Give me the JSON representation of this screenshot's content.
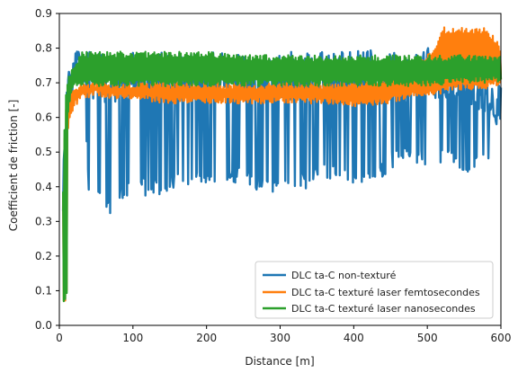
{
  "chart_data": {
    "type": "line",
    "title": "",
    "xlabel": "Distance [m]",
    "ylabel": "Coefficient de friction [-]",
    "xlim": [
      0,
      600
    ],
    "ylim": [
      0.0,
      0.9
    ],
    "xticks": [
      0,
      100,
      200,
      300,
      400,
      500,
      600
    ],
    "yticks": [
      0.0,
      0.1,
      0.2,
      0.3,
      0.4,
      0.5,
      0.6,
      0.7,
      0.8,
      0.9
    ],
    "xtick_labels": [
      "0",
      "100",
      "200",
      "300",
      "400",
      "500",
      "600"
    ],
    "ytick_labels": [
      "0.0",
      "0.1",
      "0.2",
      "0.3",
      "0.4",
      "0.5",
      "0.6",
      "0.7",
      "0.8",
      "0.9"
    ],
    "grid": false,
    "legend_position": "bottom-right",
    "series": [
      {
        "name": "DLC ta-C non-texturé",
        "color": "#1f77b4",
        "x": [
          5,
          8,
          10,
          12,
          15,
          20,
          25,
          30,
          35,
          40,
          55,
          70,
          85,
          100,
          130,
          160,
          200,
          240,
          280,
          320,
          360,
          400,
          420,
          440,
          450,
          480,
          500,
          520,
          540,
          560,
          580,
          600
        ],
        "lower": [
          0.06,
          0.06,
          0.07,
          0.1,
          0.55,
          0.7,
          0.74,
          0.7,
          0.62,
          0.38,
          0.36,
          0.32,
          0.36,
          0.38,
          0.37,
          0.4,
          0.4,
          0.41,
          0.37,
          0.38,
          0.42,
          0.4,
          0.4,
          0.42,
          0.45,
          0.47,
          0.46,
          0.46,
          0.45,
          0.44,
          0.45,
          0.6
        ],
        "upper": [
          0.45,
          0.55,
          0.7,
          0.73,
          0.75,
          0.78,
          0.8,
          0.8,
          0.8,
          0.8,
          0.79,
          0.78,
          0.78,
          0.79,
          0.79,
          0.79,
          0.79,
          0.8,
          0.79,
          0.79,
          0.79,
          0.79,
          0.8,
          0.8,
          0.79,
          0.78,
          0.8,
          0.8,
          0.8,
          0.78,
          0.74,
          0.72
        ]
      },
      {
        "name": "DLC ta-C texturé laser femtosecondes",
        "color": "#ff7f0e",
        "x": [
          5,
          8,
          10,
          12,
          15,
          20,
          30,
          50,
          100,
          150,
          200,
          250,
          300,
          350,
          400,
          450,
          480,
          500,
          510,
          520,
          540,
          560,
          580,
          595,
          600
        ],
        "lower": [
          0.06,
          0.06,
          0.1,
          0.55,
          0.6,
          0.63,
          0.65,
          0.66,
          0.65,
          0.64,
          0.64,
          0.64,
          0.64,
          0.64,
          0.63,
          0.64,
          0.66,
          0.66,
          0.66,
          0.67,
          0.68,
          0.68,
          0.68,
          0.69,
          0.69
        ],
        "upper": [
          0.4,
          0.62,
          0.65,
          0.66,
          0.67,
          0.69,
          0.7,
          0.7,
          0.7,
          0.7,
          0.7,
          0.7,
          0.7,
          0.7,
          0.7,
          0.72,
          0.76,
          0.78,
          0.8,
          0.86,
          0.86,
          0.86,
          0.86,
          0.82,
          0.8
        ]
      },
      {
        "name": "DLC ta-C texturé laser nanosecondes",
        "color": "#2ca02c",
        "x": [
          5,
          8,
          10,
          12,
          15,
          20,
          30,
          50,
          100,
          150,
          200,
          250,
          300,
          350,
          400,
          450,
          500,
          550,
          600
        ],
        "lower": [
          0.06,
          0.06,
          0.08,
          0.6,
          0.65,
          0.68,
          0.69,
          0.69,
          0.69,
          0.69,
          0.69,
          0.69,
          0.69,
          0.69,
          0.69,
          0.69,
          0.69,
          0.7,
          0.7
        ],
        "upper": [
          0.4,
          0.66,
          0.7,
          0.72,
          0.73,
          0.76,
          0.79,
          0.79,
          0.79,
          0.79,
          0.79,
          0.78,
          0.78,
          0.78,
          0.78,
          0.78,
          0.78,
          0.78,
          0.78
        ]
      }
    ]
  }
}
